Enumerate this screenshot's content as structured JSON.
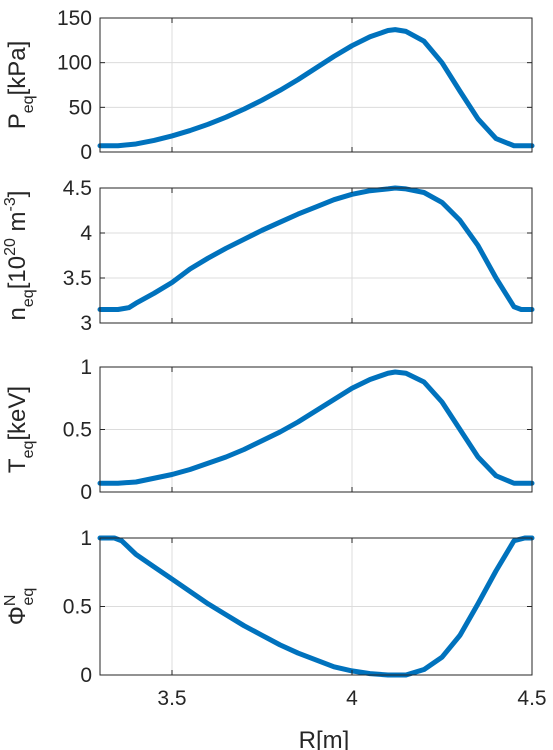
{
  "colors": {
    "line": "#0072bd",
    "axis": "#262626",
    "grid": "#dcdcdc",
    "background": "#ffffff"
  },
  "chart_data": [
    {
      "type": "line",
      "title": "",
      "xlabel": "",
      "ylabel": {
        "main": "P",
        "sub": "eq",
        "sup": "",
        "unit": "[kPa]"
      },
      "xlim": [
        3.3,
        4.5
      ],
      "ylim": [
        0,
        150
      ],
      "xticks": [
        3.5,
        4,
        4.5
      ],
      "yticks": [
        0,
        50,
        100,
        150
      ],
      "yticklabels": [
        "0",
        "50",
        "100",
        "150"
      ],
      "grid": true,
      "series": [
        {
          "x": [
            3.3,
            3.35,
            3.4,
            3.45,
            3.5,
            3.55,
            3.6,
            3.65,
            3.7,
            3.75,
            3.8,
            3.85,
            3.9,
            3.95,
            4.0,
            4.05,
            4.1,
            4.12,
            4.15,
            4.2,
            4.25,
            4.3,
            4.35,
            4.4,
            4.45,
            4.47,
            4.5
          ],
          "y": [
            7,
            7,
            9,
            13,
            18,
            24,
            31,
            39,
            48,
            58,
            69,
            81,
            94,
            107,
            119,
            129,
            136,
            137,
            135,
            124,
            100,
            68,
            37,
            15,
            7,
            7,
            7
          ]
        }
      ]
    },
    {
      "type": "line",
      "title": "",
      "xlabel": "",
      "ylabel": {
        "main": "n",
        "sub": "eq",
        "sup": "",
        "unit": "[10",
        "unit_sup": "20",
        "unit2": " m",
        "unit2_sup": "-3",
        "unit_end": "]"
      },
      "xlim": [
        3.3,
        4.5
      ],
      "ylim": [
        3.0,
        4.5
      ],
      "xticks": [
        3.5,
        4,
        4.5
      ],
      "yticks": [
        3.0,
        3.5,
        4.0,
        4.5
      ],
      "yticklabels": [
        "3",
        "3.5",
        "4",
        "4.5"
      ],
      "grid": true,
      "series": [
        {
          "x": [
            3.3,
            3.35,
            3.38,
            3.4,
            3.45,
            3.5,
            3.55,
            3.6,
            3.65,
            3.7,
            3.75,
            3.8,
            3.85,
            3.9,
            3.95,
            4.0,
            4.05,
            4.1,
            4.12,
            4.15,
            4.2,
            4.25,
            4.3,
            4.35,
            4.4,
            4.45,
            4.47,
            4.5
          ],
          "y": [
            3.15,
            3.15,
            3.17,
            3.22,
            3.33,
            3.45,
            3.6,
            3.72,
            3.83,
            3.93,
            4.03,
            4.12,
            4.21,
            4.29,
            4.37,
            4.43,
            4.47,
            4.49,
            4.5,
            4.49,
            4.45,
            4.34,
            4.14,
            3.86,
            3.5,
            3.18,
            3.15,
            3.15
          ]
        }
      ]
    },
    {
      "type": "line",
      "title": "",
      "xlabel": "",
      "ylabel": {
        "main": "T",
        "sub": "eq",
        "sup": "",
        "unit": "[keV]"
      },
      "xlim": [
        3.3,
        4.5
      ],
      "ylim": [
        0,
        1
      ],
      "xticks": [
        3.5,
        4,
        4.5
      ],
      "yticks": [
        0,
        0.5,
        1
      ],
      "yticklabels": [
        "0",
        "0.5",
        "1"
      ],
      "grid": true,
      "series": [
        {
          "x": [
            3.3,
            3.35,
            3.4,
            3.45,
            3.5,
            3.55,
            3.6,
            3.65,
            3.7,
            3.75,
            3.8,
            3.85,
            3.9,
            3.95,
            4.0,
            4.05,
            4.1,
            4.12,
            4.15,
            4.2,
            4.25,
            4.3,
            4.35,
            4.4,
            4.45,
            4.47,
            4.5
          ],
          "y": [
            0.07,
            0.07,
            0.08,
            0.11,
            0.14,
            0.18,
            0.23,
            0.28,
            0.34,
            0.41,
            0.48,
            0.56,
            0.65,
            0.74,
            0.83,
            0.9,
            0.95,
            0.96,
            0.95,
            0.88,
            0.72,
            0.5,
            0.28,
            0.13,
            0.07,
            0.07,
            0.07
          ]
        }
      ]
    },
    {
      "type": "line",
      "title": "",
      "xlabel": "R[m]",
      "ylabel": {
        "main": "Φ",
        "sub": "eq",
        "sup": "N",
        "unit": ""
      },
      "xlim": [
        3.3,
        4.5
      ],
      "ylim": [
        0,
        1
      ],
      "xticks": [
        3.5,
        4,
        4.5
      ],
      "xticklabels": [
        "3.5",
        "4",
        "4.5"
      ],
      "yticks": [
        0,
        0.5,
        1
      ],
      "yticklabels": [
        "0",
        "0.5",
        "1"
      ],
      "grid": true,
      "series": [
        {
          "x": [
            3.3,
            3.34,
            3.36,
            3.4,
            3.45,
            3.5,
            3.55,
            3.6,
            3.65,
            3.7,
            3.75,
            3.8,
            3.85,
            3.9,
            3.95,
            4.0,
            4.05,
            4.1,
            4.12,
            4.15,
            4.2,
            4.25,
            4.3,
            4.35,
            4.4,
            4.45,
            4.48,
            4.5
          ],
          "y": [
            1.0,
            1.0,
            0.98,
            0.88,
            0.79,
            0.7,
            0.61,
            0.52,
            0.44,
            0.36,
            0.29,
            0.22,
            0.16,
            0.11,
            0.06,
            0.03,
            0.01,
            0.0,
            0.0,
            0.0,
            0.04,
            0.13,
            0.29,
            0.52,
            0.76,
            0.98,
            1.0,
            1.0
          ]
        }
      ]
    }
  ]
}
